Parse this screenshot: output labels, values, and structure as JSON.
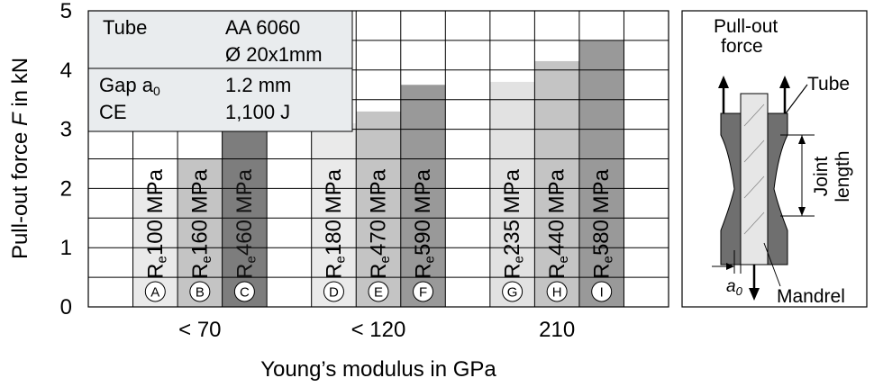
{
  "chart_data": {
    "type": "bar",
    "xlabel": "Young’s modulus in GPa",
    "ylabel": "Pull-out force F in kN",
    "ylabel_parts": {
      "before": "Pull-out force ",
      "italic": "F",
      "after": " in kN"
    },
    "ylim": [
      0,
      5
    ],
    "yticks": [
      "0",
      "1",
      "2",
      "3",
      "4",
      "5"
    ],
    "grid": true,
    "groups": [
      {
        "label": "< 70",
        "bars": [
          0,
          1,
          2
        ]
      },
      {
        "label": "< 120",
        "bars": [
          3,
          4,
          5
        ]
      },
      {
        "label": "210",
        "bars": [
          6,
          7,
          8
        ]
      }
    ],
    "bars": [
      {
        "id": "A",
        "value": 2.0,
        "label": "100 MPa",
        "color": "#eaeaea"
      },
      {
        "id": "B",
        "value": 2.5,
        "label": "160 MPa",
        "color": "#c4c4c4"
      },
      {
        "id": "C",
        "value": 3.0,
        "label": "460 MPa",
        "color": "#7d7d7d"
      },
      {
        "id": "D",
        "value": 3.1,
        "label": "180 MPa",
        "color": "#eaeaea"
      },
      {
        "id": "E",
        "value": 3.3,
        "label": "470 MPa",
        "color": "#c4c4c4"
      },
      {
        "id": "F",
        "value": 3.75,
        "label": "590 MPa",
        "color": "#999999"
      },
      {
        "id": "G",
        "value": 3.8,
        "label": "235 MPa",
        "color": "#e2e2e2"
      },
      {
        "id": "H",
        "value": 4.15,
        "label": "440 MPa",
        "color": "#c4c4c4"
      },
      {
        "id": "I",
        "value": 4.5,
        "label": "580 MPa",
        "color": "#999999"
      }
    ],
    "re_symbol": {
      "main": "R",
      "sub": "e"
    },
    "info_box": {
      "rows": [
        {
          "label": "Tube",
          "value": "AA 6060"
        },
        {
          "label": "",
          "value": "Ø 20x1mm"
        },
        {
          "label_main": "Gap a",
          "label_sub": "0",
          "value": "1.2 mm"
        },
        {
          "label": "CE",
          "value": "1,100 J"
        }
      ]
    },
    "schematic": {
      "title_line1": "Pull-out",
      "title_line2": "force",
      "tube_label": "Tube",
      "joint_line1": "Joint",
      "joint_line2": "length",
      "gap_main": "a",
      "gap_sub": "0",
      "mandrel_label": "Mandrel"
    }
  }
}
